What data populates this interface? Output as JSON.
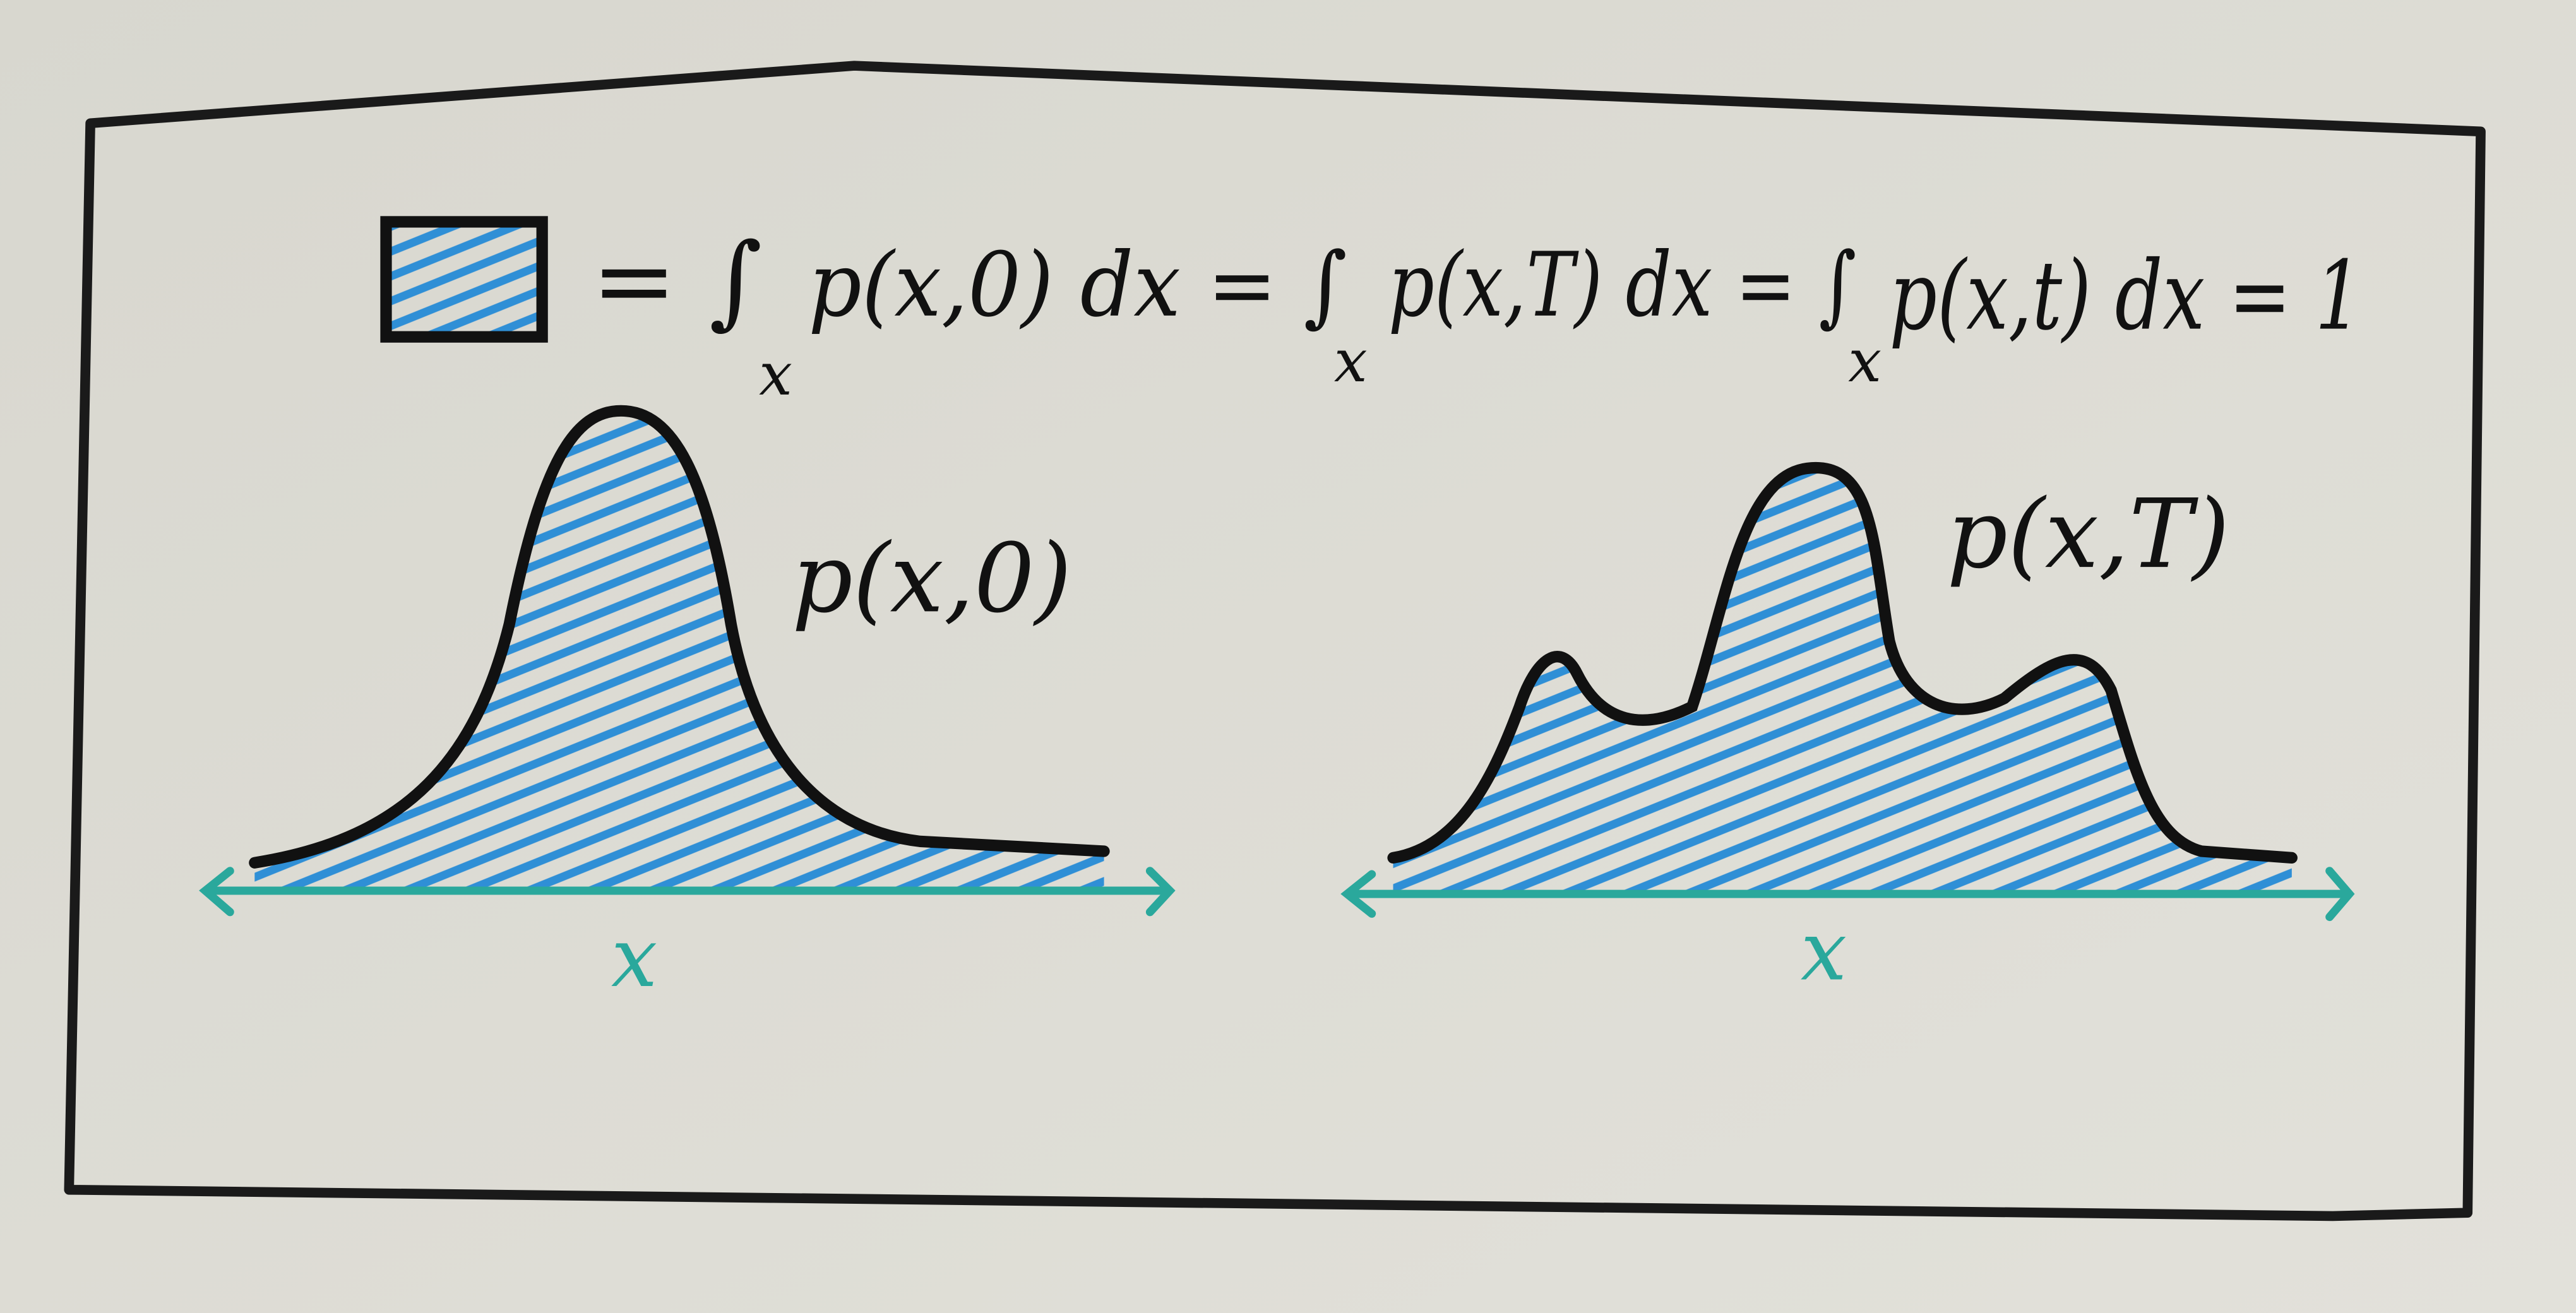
{
  "equation": {
    "segments": [
      "= ∫",
      "p(x,0) dx = ∫",
      "p(x,T) dx = ∫",
      "p(x,t) dx = 1"
    ],
    "subscripts": [
      "x",
      "x",
      "x"
    ]
  },
  "plots": [
    {
      "label": "p(x,0)",
      "axis_label": "x"
    },
    {
      "label": "p(x,T)",
      "axis_label": "x"
    }
  ]
}
